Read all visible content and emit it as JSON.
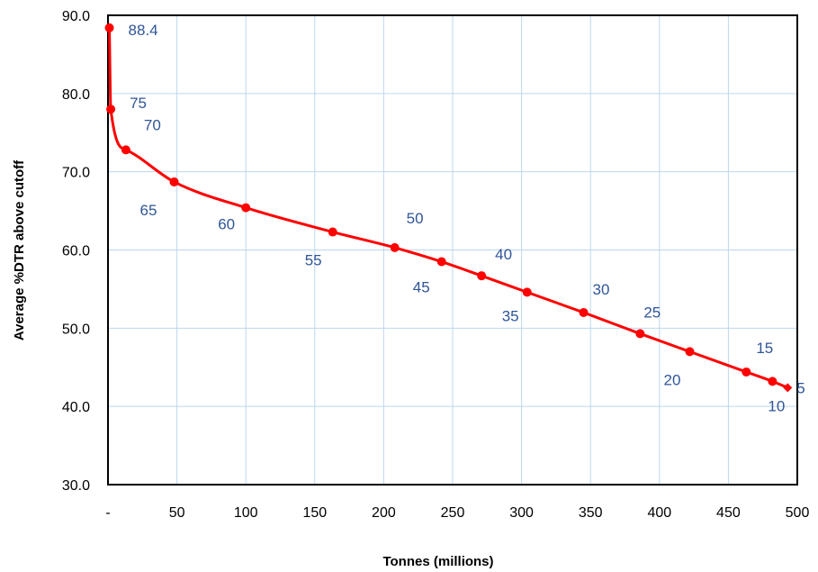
{
  "chart_data": {
    "type": "line",
    "title": "",
    "xlabel": "Tonnes (millions)",
    "ylabel": "Average %DTR above cutoff",
    "xlim": [
      0,
      500
    ],
    "ylim": [
      30,
      90
    ],
    "x_ticks": [
      "-",
      "50",
      "100",
      "150",
      "200",
      "250",
      "300",
      "350",
      "400",
      "450",
      "500"
    ],
    "y_ticks": [
      "30.0",
      "40.0",
      "50.0",
      "60.0",
      "70.0",
      "80.0",
      "90.0"
    ],
    "grid": true,
    "legend": "none",
    "colors": {
      "line": "#FF0000",
      "marker": "#FF0000",
      "label": "#2F5597",
      "grid": "#BDD7EE"
    },
    "series": [
      {
        "points": [
          {
            "x": 1,
            "y": 88.4,
            "label": "88.4"
          },
          {
            "x": 2,
            "y": 78.0,
            "label": "75"
          },
          {
            "x": 13,
            "y": 72.8,
            "label": "70"
          },
          {
            "x": 48,
            "y": 68.7,
            "label": "65"
          },
          {
            "x": 100,
            "y": 65.4,
            "label": "60"
          },
          {
            "x": 163,
            "y": 62.3,
            "label": "55"
          },
          {
            "x": 208,
            "y": 60.3,
            "label": "50"
          },
          {
            "x": 242,
            "y": 58.5,
            "label": "45"
          },
          {
            "x": 271,
            "y": 56.7,
            "label": "40"
          },
          {
            "x": 304,
            "y": 54.6,
            "label": "35"
          },
          {
            "x": 345,
            "y": 52.0,
            "label": "30"
          },
          {
            "x": 386,
            "y": 49.3,
            "label": "25"
          },
          {
            "x": 422,
            "y": 47.0,
            "label": "20"
          },
          {
            "x": 463,
            "y": 44.4,
            "label": "15"
          },
          {
            "x": 482,
            "y": 43.2,
            "label": "10"
          },
          {
            "x": 493,
            "y": 42.4,
            "label": "5"
          }
        ]
      }
    ]
  }
}
